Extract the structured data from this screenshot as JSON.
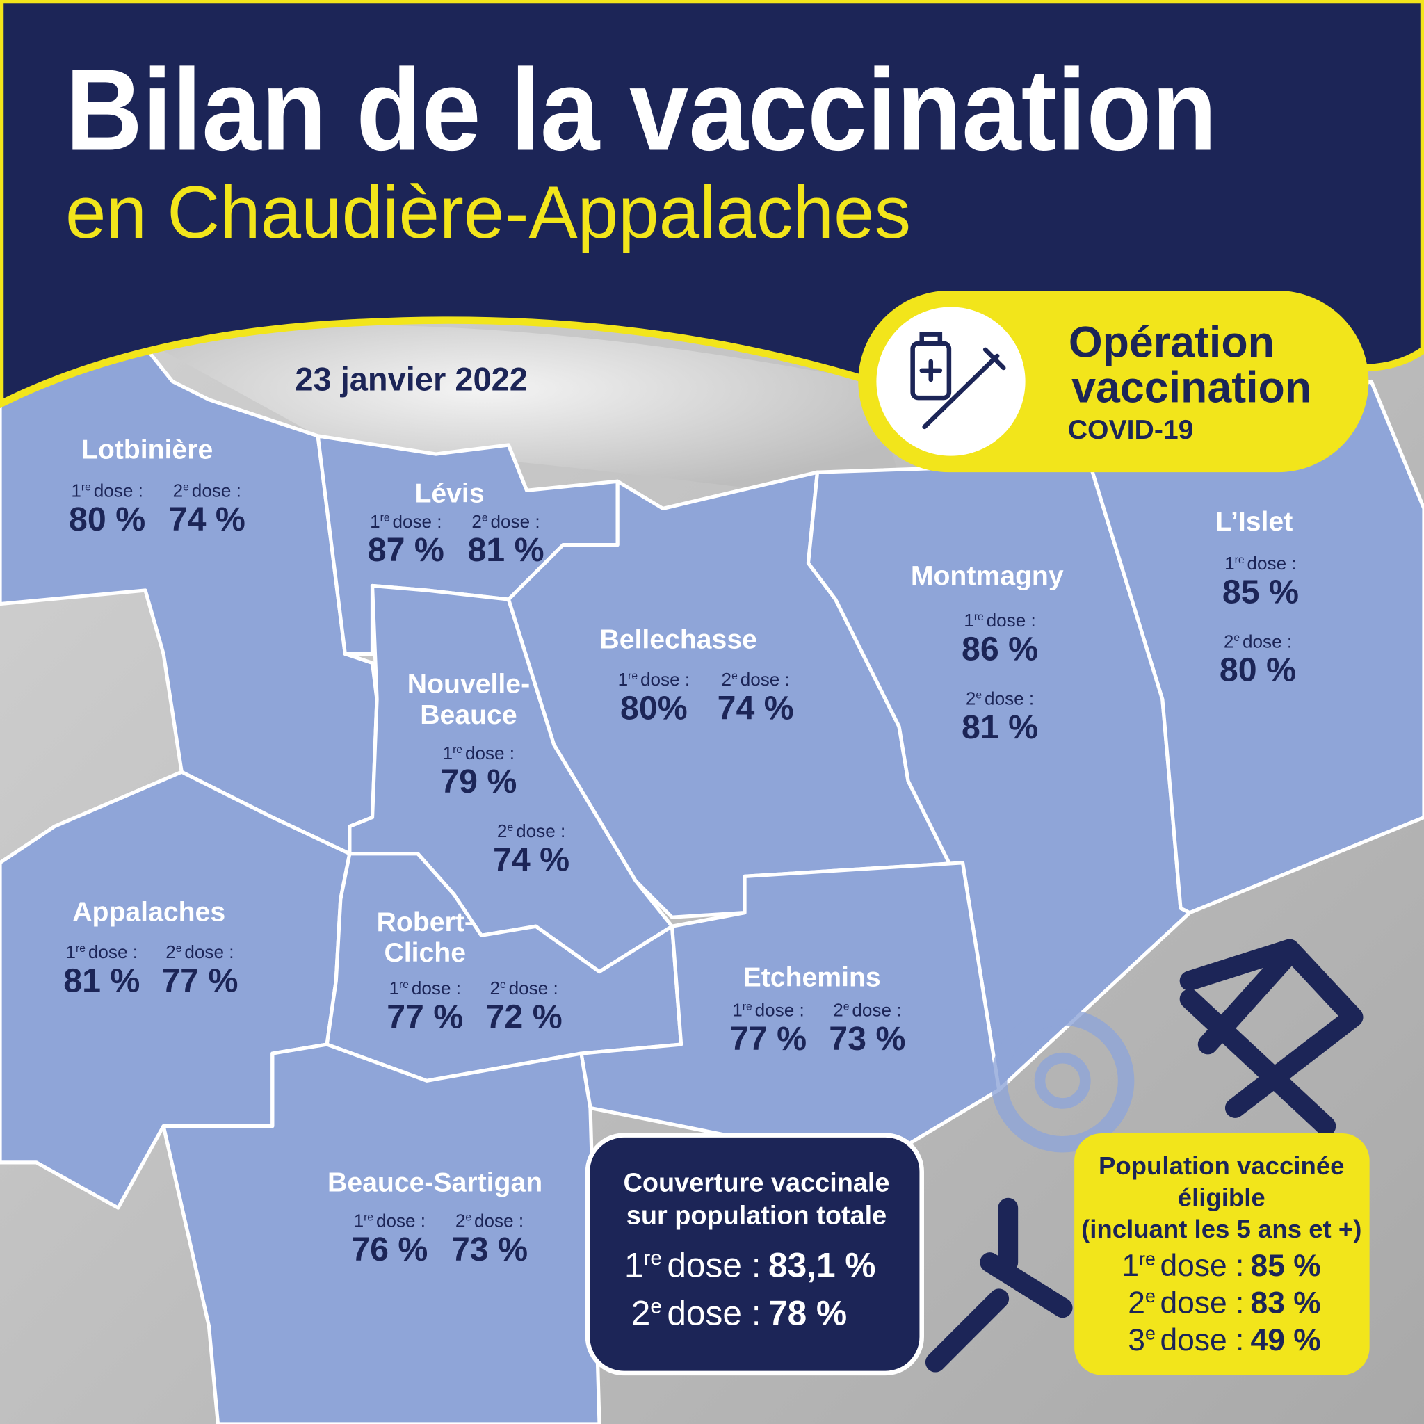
{
  "header": {
    "title": "Bilan de la vaccination",
    "subtitle": "en Chaudière-Appalaches"
  },
  "date": "23 janvier 2022",
  "badge": {
    "line1": "Opération",
    "line2": "vaccination",
    "line3": "COVID-19"
  },
  "dose_labels": [
    {
      "number": "1",
      "suffix": "re",
      "text": "dose :"
    },
    {
      "number": "2",
      "suffix": "e",
      "text": "dose :"
    },
    {
      "number": "3",
      "suffix": "e",
      "text": "dose :"
    }
  ],
  "regions": [
    {
      "name": [
        "Lotbinière"
      ],
      "dose1": "80 %",
      "dose2": "74 %"
    },
    {
      "name": [
        "Lévis"
      ],
      "dose1": "87 %",
      "dose2": "81 %"
    },
    {
      "name": [
        "Nouvelle-",
        "Beauce"
      ],
      "dose1": "79 %",
      "dose2": "74 %"
    },
    {
      "name": [
        "Bellechasse"
      ],
      "dose1": "80%",
      "dose2": "74 %"
    },
    {
      "name": [
        "Montmagny"
      ],
      "dose1": "86 %",
      "dose2": "81 %"
    },
    {
      "name": [
        "L’Islet"
      ],
      "dose1": "85 %",
      "dose2": "80 %"
    },
    {
      "name": [
        "Appalaches"
      ],
      "dose1": "81 %",
      "dose2": "77 %"
    },
    {
      "name": [
        "Robert-",
        "Cliche"
      ],
      "dose1": "77 %",
      "dose2": "72 %"
    },
    {
      "name": [
        "Etchemins"
      ],
      "dose1": "77 %",
      "dose2": "73 %"
    },
    {
      "name": [
        "Beauce-Sartigan"
      ],
      "dose1": "76 %",
      "dose2": "73 %"
    }
  ],
  "coverage": {
    "title": [
      "Couverture vaccinale",
      "sur population totale"
    ],
    "dose1": "83,1 %",
    "dose2": "78 %"
  },
  "eligible": {
    "title": [
      "Population vaccinée",
      "éligible",
      "(incluant les 5 ans et +)"
    ],
    "dose1": "85 %",
    "dose2": "83 %",
    "dose3": "49 %"
  }
}
